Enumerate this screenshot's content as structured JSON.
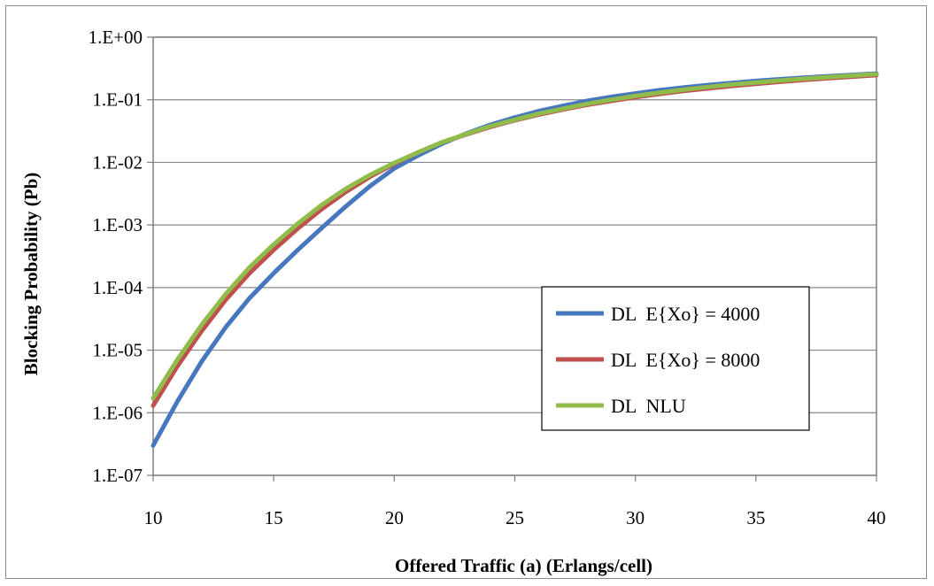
{
  "chart_data": {
    "type": "line",
    "title": "",
    "xlabel": "Offered Traffic (a) (Erlangs/cell)",
    "ylabel": "Blocking Probability (Pb)",
    "xlim": [
      10,
      40
    ],
    "ylim": [
      1e-07,
      1
    ],
    "yscale": "log",
    "x_ticks": [
      10,
      15,
      20,
      25,
      30,
      35,
      40
    ],
    "x_tick_labels": [
      "10",
      "15",
      "20",
      "25",
      "30",
      "35",
      "40"
    ],
    "y_ticks": [
      1,
      0.1,
      0.01,
      0.001,
      0.0001,
      1e-05,
      1e-06,
      1e-07
    ],
    "y_tick_labels": [
      "1.E+00",
      "1.E-01",
      "1.E-02",
      "1.E-03",
      "1.E-04",
      "1.E-05",
      "1.E-06",
      "1.E-07"
    ],
    "grid": "horizontal",
    "legend_position": "center-right",
    "x": [
      10,
      11,
      12,
      13,
      14,
      15,
      16,
      17,
      18,
      19,
      20,
      21,
      22,
      23,
      24,
      25,
      26,
      27,
      28,
      29,
      30,
      31,
      32,
      33,
      34,
      35,
      36,
      37,
      38,
      39,
      40
    ],
    "series": [
      {
        "name": "DL  E{Xo} = 4000",
        "color": "#4677bf",
        "values": [
          3e-07,
          1.5e-06,
          6.5e-06,
          2.3e-05,
          6.8e-05,
          0.00017,
          0.0004,
          0.0009,
          0.002,
          0.0042,
          0.008,
          0.013,
          0.02,
          0.029,
          0.04,
          0.052,
          0.066,
          0.08,
          0.096,
          0.111,
          0.126,
          0.142,
          0.157,
          0.172,
          0.186,
          0.2,
          0.213,
          0.226,
          0.238,
          0.25,
          0.262
        ]
      },
      {
        "name": "DL  E{Xo} = 8000",
        "color": "#c0504d",
        "values": [
          1.3e-06,
          5.5e-06,
          2e-05,
          6.3e-05,
          0.00017,
          0.0004,
          0.00088,
          0.0018,
          0.0034,
          0.0059,
          0.0095,
          0.0145,
          0.021,
          0.028,
          0.037,
          0.047,
          0.058,
          0.07,
          0.083,
          0.096,
          0.11,
          0.124,
          0.138,
          0.152,
          0.166,
          0.18,
          0.194,
          0.208,
          0.221,
          0.234,
          0.247
        ]
      },
      {
        "name": "DL  NLU",
        "color": "#8fbc4a",
        "values": [
          1.7e-06,
          7e-06,
          2.5e-05,
          7.8e-05,
          0.00021,
          0.00049,
          0.00105,
          0.0021,
          0.0038,
          0.0063,
          0.0098,
          0.0145,
          0.021,
          0.0285,
          0.038,
          0.048,
          0.06,
          0.072,
          0.086,
          0.1,
          0.115,
          0.13,
          0.145,
          0.16,
          0.175,
          0.189,
          0.203,
          0.217,
          0.23,
          0.243,
          0.256
        ]
      }
    ]
  }
}
